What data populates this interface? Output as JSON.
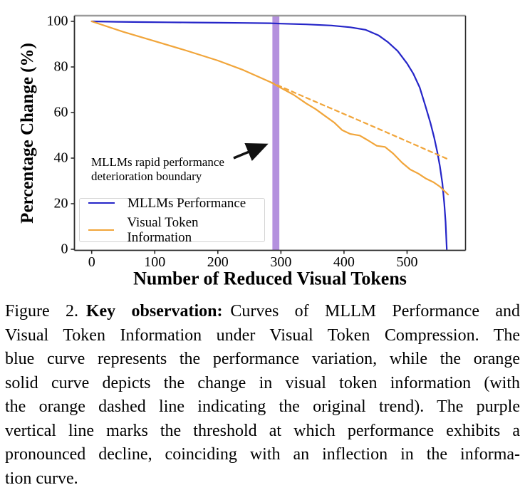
{
  "chart_data": {
    "type": "line",
    "xlabel": "Number of Reduced Visual Tokens",
    "ylabel": "Percentage Change (%)",
    "xlim": [
      -27,
      593
    ],
    "ylim": [
      0,
      103
    ],
    "xticks": [
      0,
      100,
      200,
      300,
      400,
      500
    ],
    "yticks": [
      0,
      20,
      40,
      60,
      80,
      100
    ],
    "grid": false,
    "legend_position": "lower left",
    "colors": {
      "blue": "#2525C8",
      "orange": "#F1A53A",
      "purple_band": "#B491DE",
      "spine_top": "#9A9A9A",
      "spine_dark": "#2B2B2B",
      "arrow": "#111111"
    },
    "band": {
      "x0": 286.5,
      "x1": 297.5,
      "meaning": "threshold of rapid performance deterioration"
    },
    "series": [
      {
        "name": "MLLMs Performance",
        "color_key": "blue",
        "style": "solid",
        "points": [
          [
            0,
            100
          ],
          [
            40,
            99.8
          ],
          [
            80,
            99.7
          ],
          [
            120,
            99.6
          ],
          [
            160,
            99.5
          ],
          [
            200,
            99.4
          ],
          [
            240,
            99.3
          ],
          [
            283,
            99.2
          ],
          [
            300,
            99.0
          ],
          [
            340,
            98.7
          ],
          [
            380,
            98.2
          ],
          [
            410,
            97.4
          ],
          [
            434,
            96.3
          ],
          [
            455,
            93.8
          ],
          [
            470,
            90.8
          ],
          [
            485,
            87.0
          ],
          [
            500,
            81.5
          ],
          [
            510,
            77.0
          ],
          [
            520,
            71.0
          ],
          [
            529,
            63.0
          ],
          [
            537,
            55.5
          ],
          [
            543,
            49.0
          ],
          [
            548,
            42.5
          ],
          [
            552,
            36.5
          ],
          [
            556,
            29.0
          ],
          [
            559,
            20.0
          ],
          [
            561,
            12.0
          ],
          [
            563,
            0
          ]
        ]
      },
      {
        "name": "Visual Token Information",
        "color_key": "orange",
        "style": "solid",
        "points": [
          [
            0,
            100
          ],
          [
            50,
            95.4
          ],
          [
            100,
            91.3
          ],
          [
            150,
            87.2
          ],
          [
            200,
            82.8
          ],
          [
            240,
            78.7
          ],
          [
            283,
            73.4
          ],
          [
            300,
            70.8
          ],
          [
            320,
            67.8
          ],
          [
            340,
            64.0
          ],
          [
            355,
            61.5
          ],
          [
            370,
            58.5
          ],
          [
            385,
            55.5
          ],
          [
            397,
            52.3
          ],
          [
            410,
            50.6
          ],
          [
            425,
            49.9
          ],
          [
            438,
            47.8
          ],
          [
            452,
            45.4
          ],
          [
            465,
            44.9
          ],
          [
            478,
            42.0
          ],
          [
            492,
            38.0
          ],
          [
            505,
            35.0
          ],
          [
            518,
            33.2
          ],
          [
            530,
            31.0
          ],
          [
            542,
            29.4
          ],
          [
            552,
            27.5
          ],
          [
            565,
            24.0
          ]
        ]
      },
      {
        "name": "Original trend (dashed)",
        "color_key": "orange",
        "style": "dashed",
        "points": [
          [
            283,
            73.4
          ],
          [
            350,
            65.3
          ],
          [
            420,
            57.0
          ],
          [
            490,
            48.6
          ],
          [
            565,
            39.5
          ]
        ]
      }
    ],
    "annotation": {
      "line1": "MLLMs rapid performance",
      "line2": "deterioration boundary",
      "arrow": {
        "x1": 225,
        "y1": 40,
        "x2": 273,
        "y2": 45.5
      }
    },
    "legend": [
      {
        "label": "MLLMs Performance",
        "color_key": "blue"
      },
      {
        "label": "Visual Token Information",
        "color_key": "orange"
      }
    ]
  },
  "caption": {
    "line1": {
      "pre": "Figure 2.",
      "bold": "Key observation:",
      "post": "Curves of MLLM Performance and"
    },
    "lines": [
      "Visual Token Information under Visual Token Compression. The",
      "blue curve represents the performance variation, while the orange",
      "solid curve depicts the change in visual token information (with",
      "the orange dashed line indicating the original trend). The purple",
      "vertical line marks the threshold at which performance exhibits a",
      "pronounced decline, coinciding with an inflection in the informa-",
      "tion curve."
    ]
  }
}
